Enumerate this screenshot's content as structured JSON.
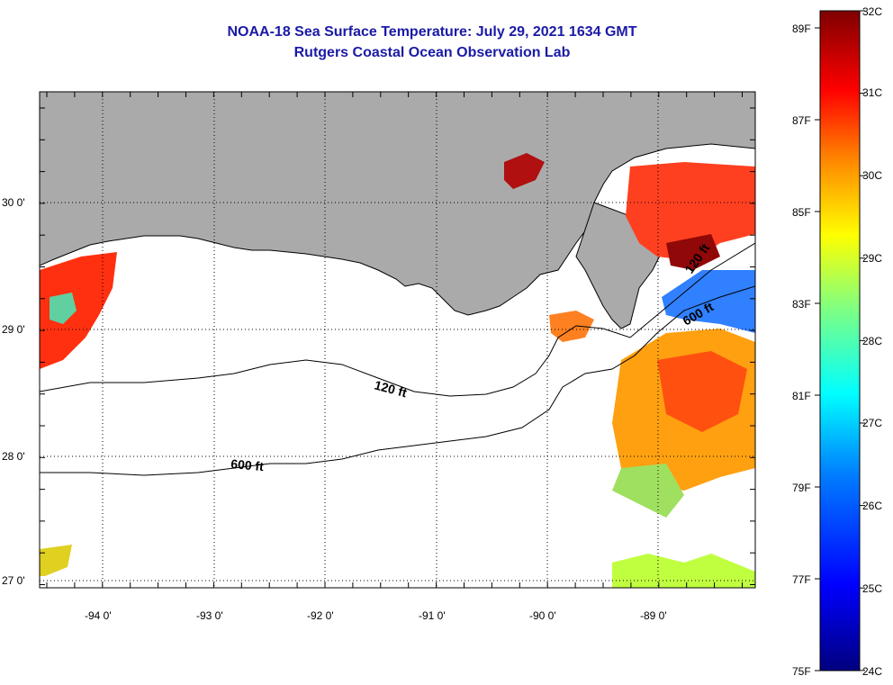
{
  "header": {
    "title": "NOAA-18 Sea Surface Temperature:  July 29, 2021 1634 GMT",
    "subtitle": "Rutgers Coastal Ocean Observation Lab"
  },
  "map": {
    "lat_labels": [
      "30 0'",
      "29 0'",
      "28 0'",
      "27 0'"
    ],
    "lon_labels": [
      "-94 0'",
      "-93 0'",
      "-92 0'",
      "-91 0'",
      "-90 0'",
      "-89 0'"
    ],
    "contours": [
      {
        "name": "120 ft",
        "label": "120 ft"
      },
      {
        "name": "600 ft",
        "label": "600 ft"
      },
      {
        "name": "120 ft east",
        "label": "120 ft"
      },
      {
        "name": "600 ft east",
        "label": "600 ft"
      }
    ],
    "colors": {
      "land": "#aaaaaa",
      "water_nodata": "#ffffff",
      "grid": "#000000"
    }
  },
  "colorbar": {
    "fahrenheit_labels": [
      "89F",
      "87F",
      "85F",
      "83F",
      "81F",
      "79F",
      "77F",
      "75F"
    ],
    "celsius_labels": [
      "32C",
      "31C",
      "30C",
      "29C",
      "28C",
      "27C",
      "26C",
      "25C",
      "24C"
    ],
    "stops": [
      "#00007f",
      "#0000ff",
      "#0080ff",
      "#00ffff",
      "#80ff80",
      "#ffff00",
      "#ff8000",
      "#ff0000",
      "#7f0000"
    ]
  }
}
